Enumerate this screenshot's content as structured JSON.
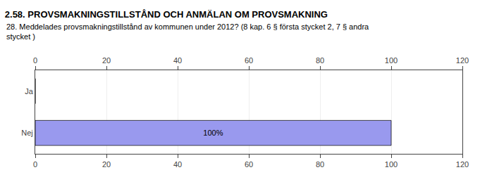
{
  "chart_data": {
    "type": "bar",
    "orientation": "horizontal",
    "title": "2.58. PROVSMAKNINGSTILLSTÅND OCH ANMÄLAN OM PROVSMAKNING",
    "subtitle": "28. Meddelades provsmakningstillstånd av kommunen under 2012? (8 kap. 6 § första stycket 2, 7 § andra\nstycket )",
    "categories": [
      "Nej",
      "Ja"
    ],
    "values": [
      100,
      0
    ],
    "value_labels": [
      "100%",
      null
    ],
    "data_labels": true,
    "colors": [
      "#9999ee",
      "#c8c8d8"
    ],
    "xlim": [
      0,
      120
    ],
    "xticks": [
      0,
      20,
      40,
      60,
      80,
      100,
      120
    ],
    "grid": true
  }
}
